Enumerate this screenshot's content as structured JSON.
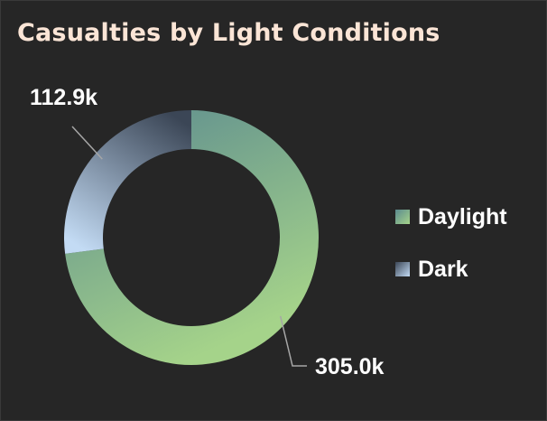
{
  "chart_data": {
    "type": "pie",
    "title": "Casualties by Light Conditions",
    "categories": [
      "Daylight",
      "Dark"
    ],
    "values": [
      305.0,
      112.9
    ],
    "data_labels": [
      "305.0k",
      "112.9k"
    ],
    "unit": "k",
    "legend_position": "right",
    "grid": false
  },
  "colors": {
    "background": "#262626",
    "title": "#fbe5d6",
    "daylight_light": "#a5d38a",
    "daylight_dark": "#5b8a8f",
    "dark_light": "#c3dbf4",
    "dark_dark": "#3b4656",
    "leader_line": "#a6a6a6",
    "label_text": "#ffffff"
  }
}
